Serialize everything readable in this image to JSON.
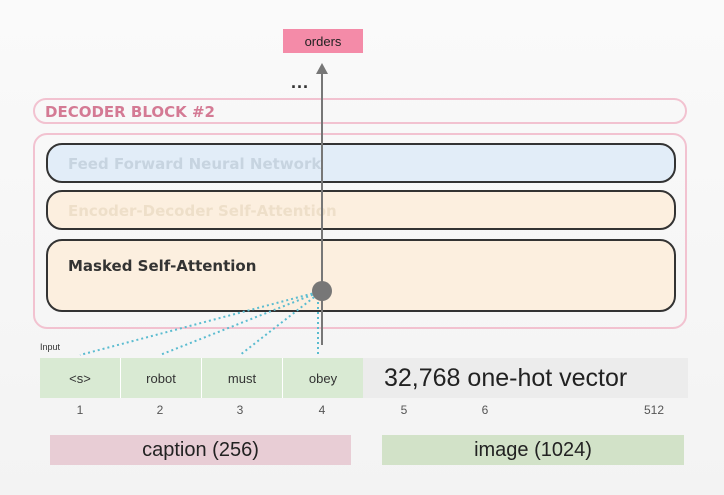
{
  "output": {
    "token": "orders",
    "ellipsis": "..."
  },
  "decoder": {
    "title": "DECODER BLOCK #2",
    "layers": {
      "ffnn": "Feed Forward Neural Network",
      "encdec": "Encoder-Decoder Self-Attention",
      "masked": "Masked Self-Attention"
    }
  },
  "input": {
    "label": "Input",
    "tokens": [
      "<s>",
      "robot",
      "must",
      "obey"
    ],
    "one_hot_text": "32,768 one-hot vector",
    "positions": [
      "1",
      "2",
      "3",
      "4",
      "5",
      "6",
      "512"
    ]
  },
  "segments": {
    "caption": "caption (256)",
    "image": "image (1024)"
  },
  "colors": {
    "output_token": "#f48ba8",
    "decoder_border": "#f2c2d0",
    "ffnn_fill": "#e2edf8",
    "attention_fill": "#fcefdf",
    "token_fill": "#d9ead3",
    "attention_lines": "#5bbcd0",
    "caption_fill": "#e8cdd5",
    "image_fill": "#d2e2c8"
  }
}
